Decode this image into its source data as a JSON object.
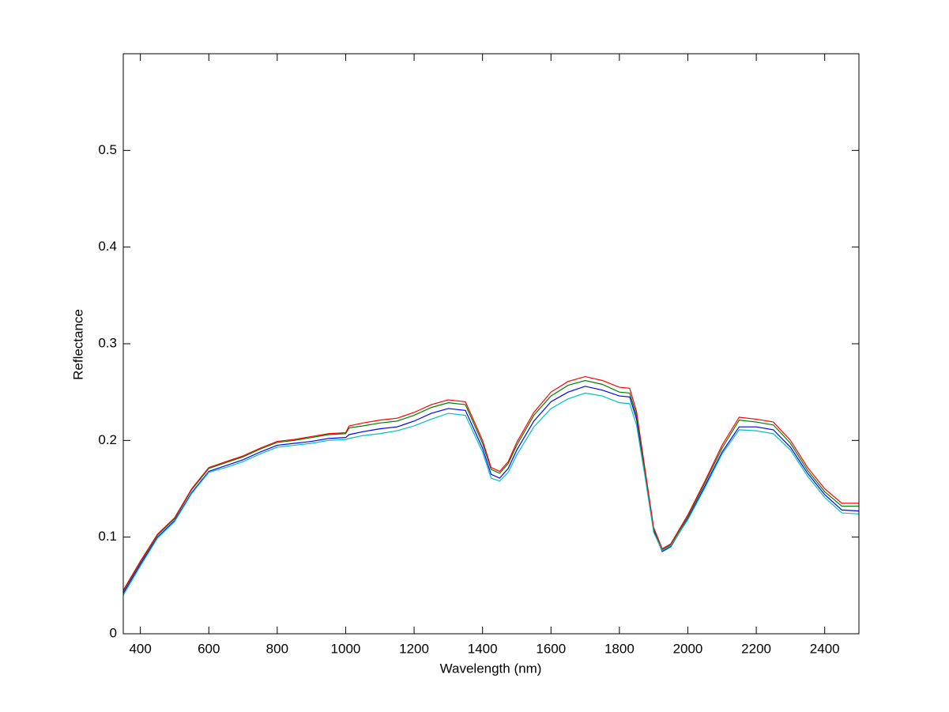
{
  "chart_data": {
    "type": "line",
    "xlabel": "Wavelength (nm)",
    "ylabel": "Reflectance",
    "x": [
      350,
      400,
      450,
      500,
      550,
      600,
      650,
      700,
      750,
      800,
      850,
      900,
      950,
      1000,
      1010,
      1050,
      1100,
      1150,
      1200,
      1250,
      1300,
      1350,
      1400,
      1425,
      1450,
      1475,
      1500,
      1550,
      1600,
      1650,
      1700,
      1750,
      1800,
      1830,
      1850,
      1875,
      1900,
      1925,
      1950,
      2000,
      2050,
      2100,
      2150,
      2200,
      2250,
      2300,
      2350,
      2400,
      2450,
      2500
    ],
    "series": [
      {
        "color": "#0000ff",
        "values": [
          0.042,
          0.072,
          0.1,
          0.117,
          0.146,
          0.168,
          0.174,
          0.18,
          0.188,
          0.195,
          0.197,
          0.199,
          0.202,
          0.203,
          0.206,
          0.209,
          0.212,
          0.214,
          0.22,
          0.228,
          0.233,
          0.231,
          0.192,
          0.165,
          0.161,
          0.171,
          0.19,
          0.22,
          0.24,
          0.25,
          0.256,
          0.252,
          0.246,
          0.245,
          0.222,
          0.166,
          0.107,
          0.085,
          0.09,
          0.119,
          0.153,
          0.188,
          0.214,
          0.214,
          0.211,
          0.193,
          0.166,
          0.144,
          0.128,
          0.127
        ]
      },
      {
        "color": "#008000",
        "values": [
          0.044,
          0.074,
          0.102,
          0.119,
          0.149,
          0.171,
          0.177,
          0.183,
          0.191,
          0.198,
          0.2,
          0.203,
          0.206,
          0.207,
          0.213,
          0.215,
          0.218,
          0.22,
          0.226,
          0.234,
          0.239,
          0.237,
          0.197,
          0.17,
          0.166,
          0.176,
          0.195,
          0.226,
          0.246,
          0.257,
          0.262,
          0.258,
          0.25,
          0.249,
          0.226,
          0.168,
          0.109,
          0.087,
          0.092,
          0.121,
          0.156,
          0.192,
          0.221,
          0.219,
          0.216,
          0.197,
          0.169,
          0.147,
          0.132,
          0.132
        ]
      },
      {
        "color": "#ff0000",
        "values": [
          0.045,
          0.075,
          0.103,
          0.12,
          0.15,
          0.172,
          0.178,
          0.184,
          0.192,
          0.199,
          0.201,
          0.204,
          0.207,
          0.208,
          0.215,
          0.218,
          0.221,
          0.223,
          0.229,
          0.237,
          0.242,
          0.24,
          0.2,
          0.172,
          0.168,
          0.178,
          0.198,
          0.229,
          0.25,
          0.261,
          0.266,
          0.262,
          0.255,
          0.254,
          0.23,
          0.17,
          0.11,
          0.088,
          0.093,
          0.123,
          0.158,
          0.195,
          0.224,
          0.222,
          0.219,
          0.2,
          0.172,
          0.15,
          0.135,
          0.135
        ]
      },
      {
        "color": "#00bfbf",
        "values": [
          0.04,
          0.07,
          0.099,
          0.116,
          0.145,
          0.167,
          0.172,
          0.178,
          0.186,
          0.193,
          0.195,
          0.197,
          0.2,
          0.201,
          0.202,
          0.205,
          0.207,
          0.21,
          0.215,
          0.222,
          0.228,
          0.226,
          0.188,
          0.161,
          0.158,
          0.167,
          0.185,
          0.214,
          0.233,
          0.243,
          0.249,
          0.246,
          0.239,
          0.238,
          0.216,
          0.162,
          0.105,
          0.086,
          0.091,
          0.118,
          0.151,
          0.186,
          0.211,
          0.21,
          0.207,
          0.19,
          0.163,
          0.141,
          0.125,
          0.124
        ]
      }
    ],
    "xlim": [
      350,
      2500
    ],
    "xticks": [
      400,
      600,
      800,
      1000,
      1200,
      1400,
      1600,
      1800,
      2000,
      2200,
      2400
    ],
    "ylim": [
      0,
      0.6
    ],
    "yticks": [
      0,
      0.1,
      0.2,
      0.3,
      0.4,
      0.5
    ],
    "grid": false
  }
}
